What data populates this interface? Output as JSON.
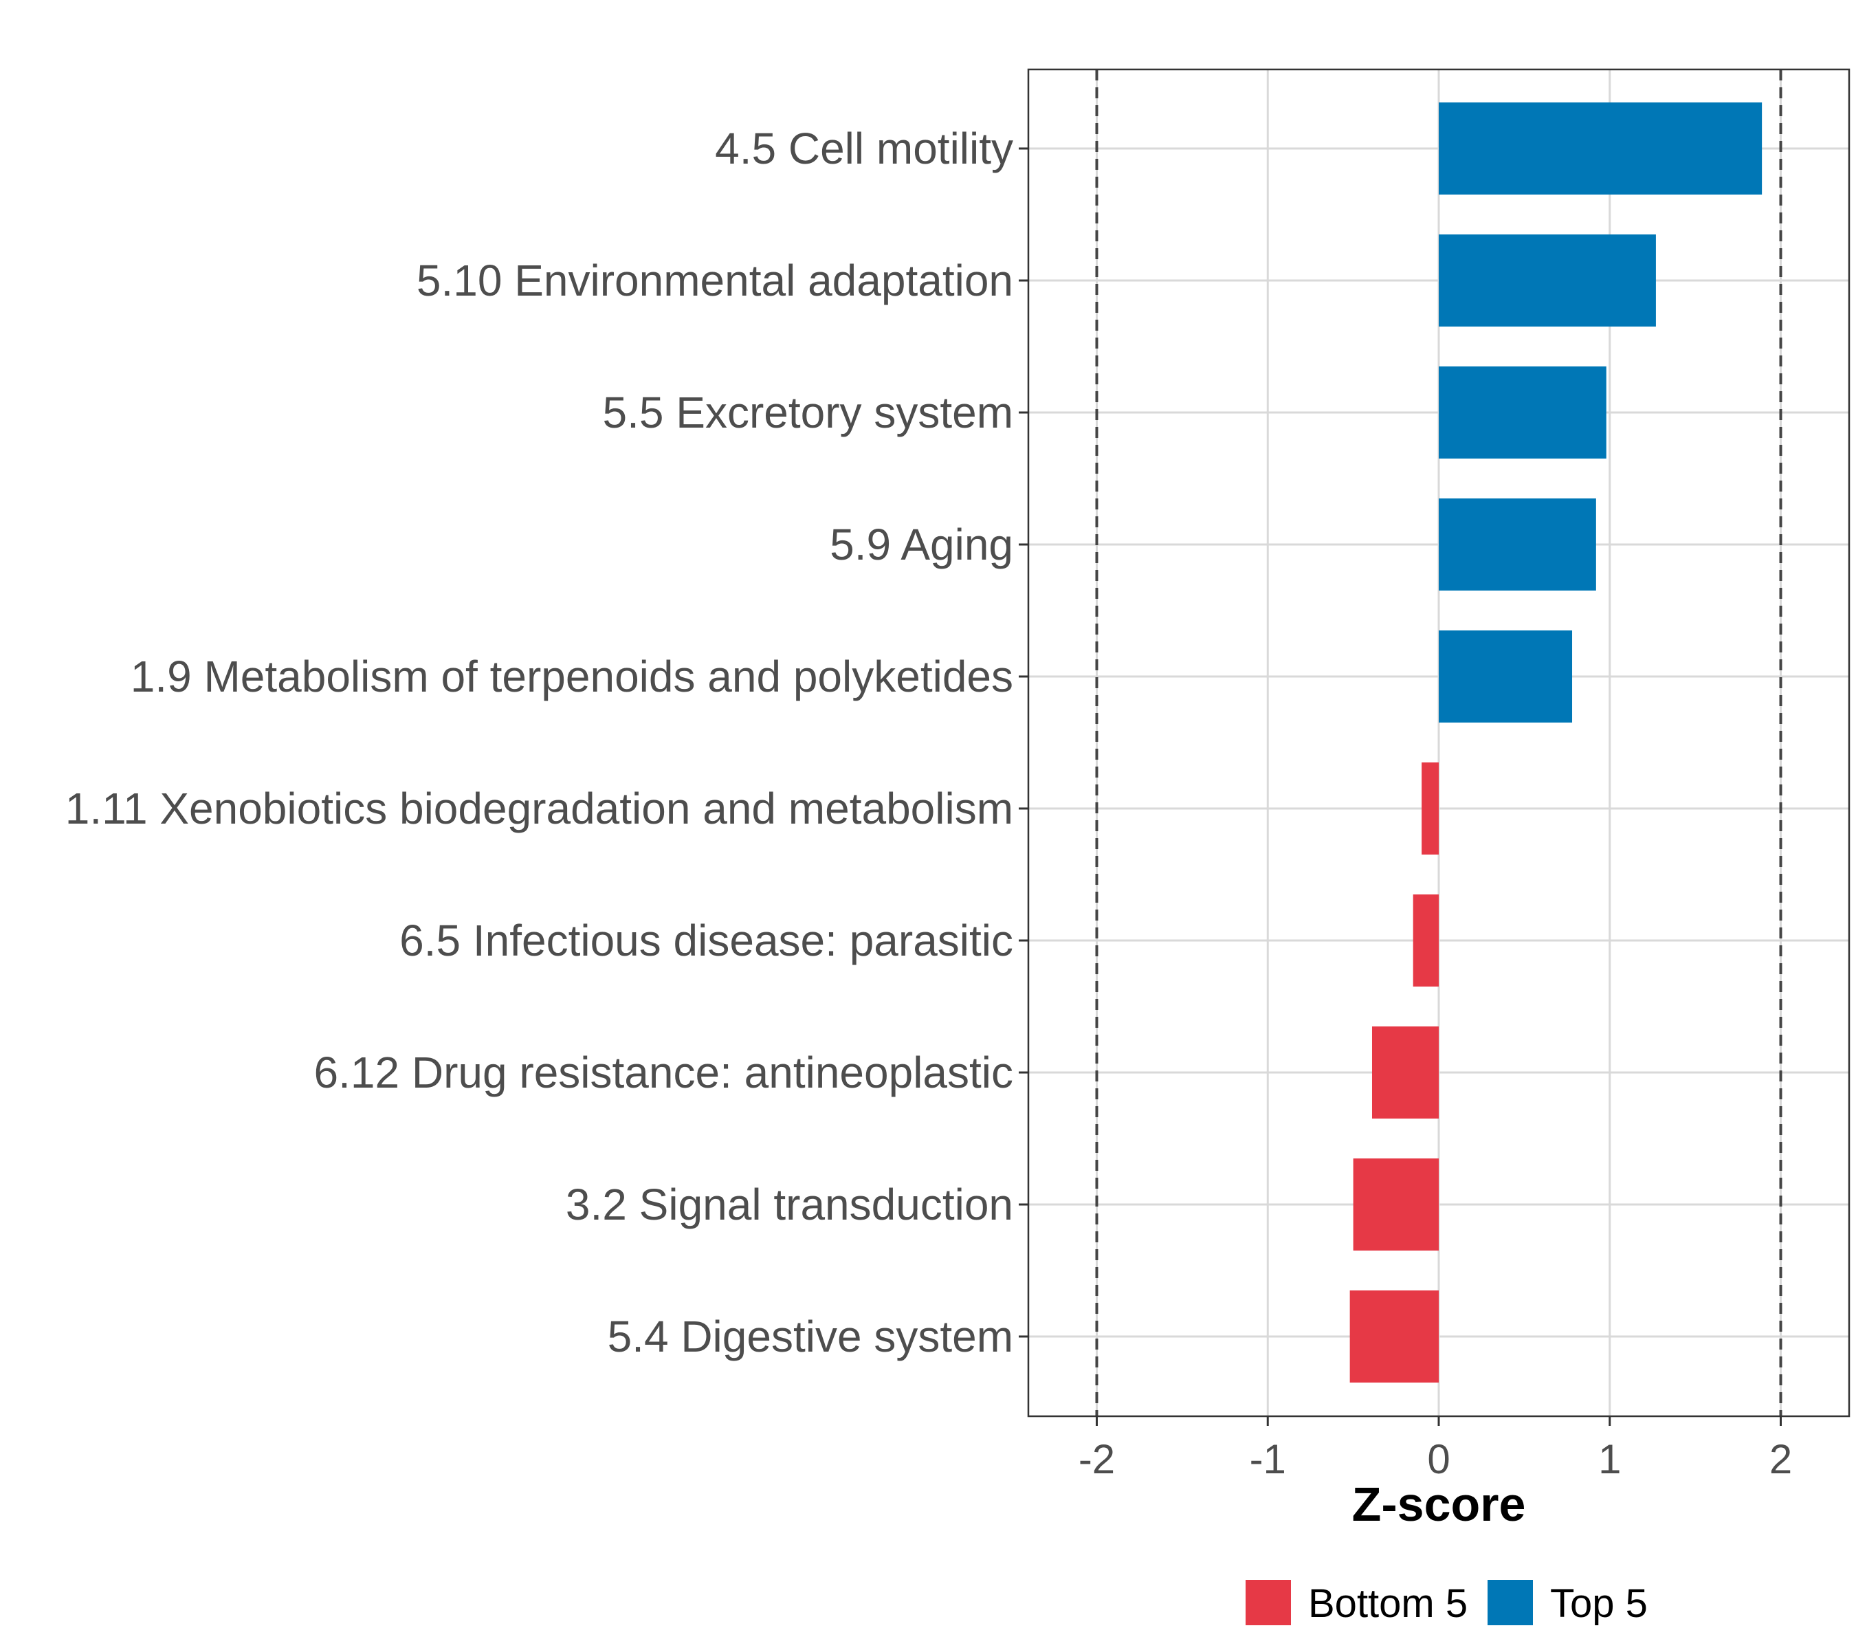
{
  "chart_data": {
    "type": "bar",
    "orientation": "horizontal",
    "categories": [
      "4.5 Cell motility",
      "5.10 Environmental adaptation",
      "5.5 Excretory system",
      "5.9 Aging",
      "1.9 Metabolism of terpenoids and polyketides",
      "1.11 Xenobiotics biodegradation and metabolism",
      "6.5 Infectious disease: parasitic",
      "6.12 Drug resistance: antineoplastic",
      "3.2 Signal transduction",
      "5.4 Digestive system"
    ],
    "values": [
      1.89,
      1.27,
      0.98,
      0.92,
      0.78,
      -0.1,
      -0.15,
      -0.39,
      -0.5,
      -0.52
    ],
    "groups": [
      "Top 5",
      "Top 5",
      "Top 5",
      "Top 5",
      "Top 5",
      "Bottom 5",
      "Bottom 5",
      "Bottom 5",
      "Bottom 5",
      "Bottom 5"
    ],
    "xlabel": "Z-score",
    "ylabel": "",
    "xlim": [
      -2.4,
      2.4
    ],
    "xticks": [
      -2,
      -1,
      0,
      1,
      2
    ],
    "xtick_labels": [
      "-2",
      "-1",
      "0",
      "1",
      "2"
    ],
    "reference_lines": [
      -2,
      2
    ],
    "grid": true,
    "legend": {
      "position": "bottom",
      "items": [
        {
          "label": "Bottom 5",
          "color": "#e63946"
        },
        {
          "label": "Top 5",
          "color": "#0077b6"
        }
      ]
    },
    "colors": {
      "Top 5": "#0077b6",
      "Bottom 5": "#e63946"
    }
  }
}
